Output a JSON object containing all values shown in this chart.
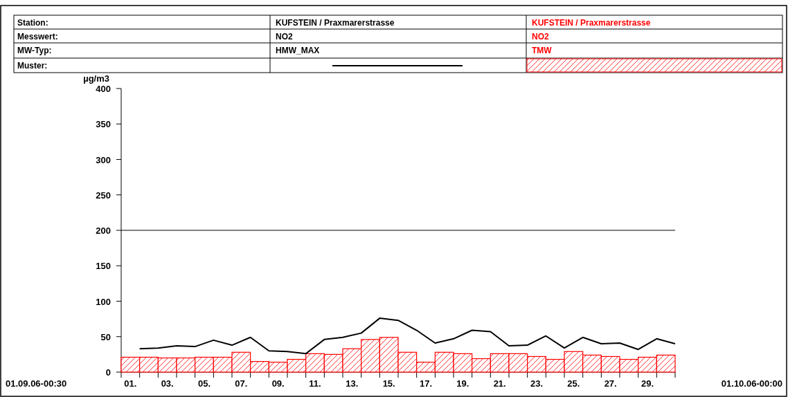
{
  "chart_data": {
    "type": "bar",
    "ylabel": "µg/m3",
    "xlim": [
      0,
      30
    ],
    "ylim": [
      0,
      400
    ],
    "yticks": [
      0,
      50,
      100,
      150,
      200,
      250,
      300,
      350,
      400
    ],
    "xticks": [
      {
        "value": 0.5,
        "label": "01."
      },
      {
        "value": 2.5,
        "label": "03."
      },
      {
        "value": 4.5,
        "label": "05."
      },
      {
        "value": 6.5,
        "label": "07."
      },
      {
        "value": 8.5,
        "label": "09."
      },
      {
        "value": 10.5,
        "label": "11."
      },
      {
        "value": 12.5,
        "label": "13."
      },
      {
        "value": 14.5,
        "label": "15."
      },
      {
        "value": 16.5,
        "label": "17."
      },
      {
        "value": 18.5,
        "label": "19."
      },
      {
        "value": 20.5,
        "label": "21."
      },
      {
        "value": 22.5,
        "label": "23."
      },
      {
        "value": 24.5,
        "label": "25."
      },
      {
        "value": 26.5,
        "label": "27."
      },
      {
        "value": 28.5,
        "label": "29."
      },
      {
        "value": 0,
        "label": null
      },
      {
        "value": 1,
        "label": null
      },
      {
        "value": 2,
        "label": null
      },
      {
        "value": 3,
        "label": null
      },
      {
        "value": 4,
        "label": null
      },
      {
        "value": 5,
        "label": null
      },
      {
        "value": 6,
        "label": null
      },
      {
        "value": 7,
        "label": null
      },
      {
        "value": 8,
        "label": null
      },
      {
        "value": 9,
        "label": null
      },
      {
        "value": 10,
        "label": null
      },
      {
        "value": 11,
        "label": null
      },
      {
        "value": 12,
        "label": null
      },
      {
        "value": 13,
        "label": null
      },
      {
        "value": 14,
        "label": null
      },
      {
        "value": 15,
        "label": null
      },
      {
        "value": 16,
        "label": null
      },
      {
        "value": 17,
        "label": null
      },
      {
        "value": 18,
        "label": null
      },
      {
        "value": 19,
        "label": null
      },
      {
        "value": 20,
        "label": null
      },
      {
        "value": 21,
        "label": null
      },
      {
        "value": 22,
        "label": null
      },
      {
        "value": 23,
        "label": null
      },
      {
        "value": 24,
        "label": null
      },
      {
        "value": 25,
        "label": null
      },
      {
        "value": 26,
        "label": null
      },
      {
        "value": 27,
        "label": null
      },
      {
        "value": 28,
        "label": null
      },
      {
        "value": 29,
        "label": null
      },
      {
        "value": 30,
        "label": null
      }
    ],
    "series": [
      {
        "name": "HMW_MAX",
        "type": "line",
        "color": "#000000",
        "x": [
          1,
          2,
          3,
          4,
          5,
          6,
          7,
          8,
          9,
          10,
          11,
          12,
          13,
          14,
          15,
          16,
          17,
          18,
          19,
          20,
          21,
          22,
          23,
          24,
          25,
          26,
          27,
          28,
          29,
          30
        ],
        "values": [
          33,
          34,
          37,
          36,
          45,
          38,
          49,
          30,
          29,
          26,
          46,
          49,
          55,
          76,
          73,
          59,
          41,
          47,
          59,
          57,
          37,
          38,
          51,
          34,
          49,
          40,
          41,
          32,
          47,
          40
        ]
      },
      {
        "name": "TMW",
        "color": "#ff0000",
        "x": [
          0.5,
          1.5,
          2.5,
          3.5,
          4.5,
          5.5,
          6.5,
          7.5,
          8.5,
          9.5,
          10.5,
          11.5,
          12.5,
          13.5,
          14.5,
          15.5,
          16.5,
          17.5,
          18.5,
          19.5,
          20.5,
          21.5,
          22.5,
          23.5,
          24.5,
          25.5,
          26.5,
          27.5,
          28.5,
          29.5
        ],
        "values": [
          21,
          21,
          20,
          20,
          21,
          21,
          28,
          15,
          14,
          18,
          26,
          25,
          33,
          46,
          49,
          28,
          14,
          28,
          26,
          19,
          26,
          26,
          22,
          18,
          29,
          24,
          22,
          18,
          21,
          24
        ]
      }
    ],
    "ref_lines": [
      {
        "axis": "y",
        "value": 200,
        "color": "#000000"
      }
    ],
    "legend": "top",
    "annotations": [
      "Station:",
      "Messwert:",
      "MW-Typ:",
      "Muster:",
      "KUFSTEIN / Praxmarerstrasse",
      "NO2",
      "KUFSTEIN / Praxmarerstrasse",
      "NO2",
      "01.09.06-00:30",
      "01.10.06-00:00"
    ]
  }
}
